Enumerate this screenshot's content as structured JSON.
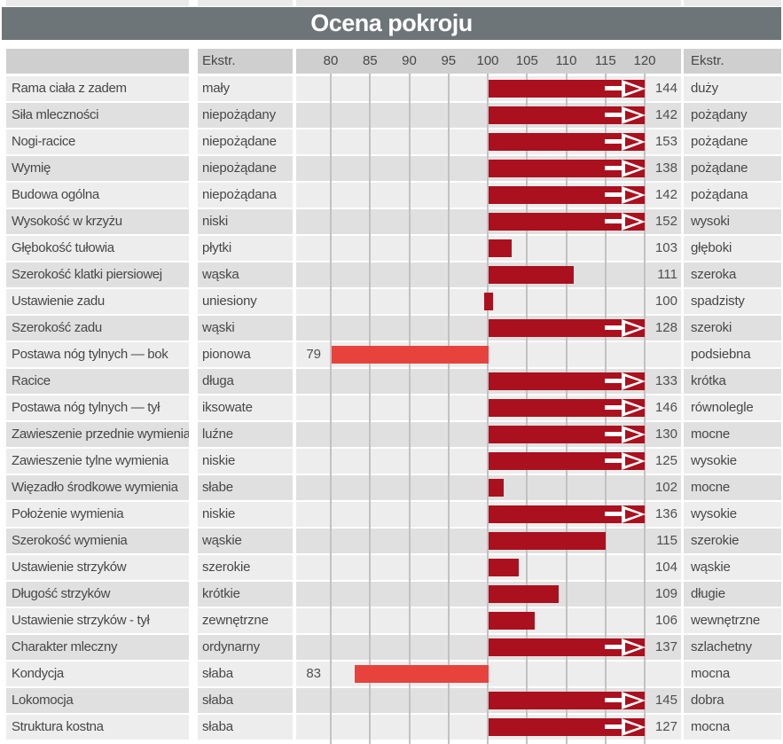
{
  "title": "Ocena pokroju",
  "header": {
    "ekstr_left": "Ekstr.",
    "ekstr_right": "Ekstr."
  },
  "chart_data": {
    "type": "bar",
    "orientation": "horizontal",
    "title": "Ocena pokroju",
    "axis": {
      "min": 80,
      "max": 120,
      "step": 5,
      "baseline": 100,
      "ticks": [
        80,
        85,
        90,
        95,
        100,
        105,
        110,
        115,
        120
      ],
      "overflow_marker": "white arrow when value exceeds 120",
      "grid": true
    },
    "colors": {
      "bar_above_100": "#ab101e",
      "bar_below_100": "#e8423d",
      "title_bar": "#6e7578",
      "header_bg": "#cfcfcf",
      "row_light": "#ededed",
      "row_dark": "#e0e0e0",
      "gridline": "#c2c2c2",
      "title_text": "#ffffff"
    },
    "rows": [
      {
        "trait": "Rama ciała z zadem",
        "extreme_low": "mały",
        "value": 144,
        "extreme_high": "duży"
      },
      {
        "trait": "Siła mleczności",
        "extreme_low": "niepożądany",
        "value": 142,
        "extreme_high": "pożądany"
      },
      {
        "trait": "Nogi-racice",
        "extreme_low": "niepożądane",
        "value": 153,
        "extreme_high": "pożądane"
      },
      {
        "trait": "Wymię",
        "extreme_low": "niepożądane",
        "value": 138,
        "extreme_high": "pożądane"
      },
      {
        "trait": "Budowa ogólna",
        "extreme_low": "niepożądana",
        "value": 142,
        "extreme_high": "pożądana"
      },
      {
        "trait": "Wysokość w krzyżu",
        "extreme_low": "niski",
        "value": 152,
        "extreme_high": "wysoki"
      },
      {
        "trait": "Głębokość tułowia",
        "extreme_low": "płytki",
        "value": 103,
        "extreme_high": "głęboki"
      },
      {
        "trait": "Szerokość klatki piersiowej",
        "extreme_low": "wąska",
        "value": 111,
        "extreme_high": "szeroka"
      },
      {
        "trait": "Ustawienie zadu",
        "extreme_low": "uniesiony",
        "value": 100,
        "extreme_high": "spadzisty"
      },
      {
        "trait": "Szerokość zadu",
        "extreme_low": "wąski",
        "value": 128,
        "extreme_high": "szeroki"
      },
      {
        "trait": "Postawa nóg tylnych —  bok",
        "extreme_low": "pionowa",
        "value": 79,
        "extreme_high": "podsiebna"
      },
      {
        "trait": "Racice",
        "extreme_low": "długa",
        "value": 133,
        "extreme_high": "krótka"
      },
      {
        "trait": "Postawa nóg tylnych —  tył",
        "extreme_low": "iksowate",
        "value": 146,
        "extreme_high": "równolegle"
      },
      {
        "trait": "Zawieszenie przednie wymienia",
        "extreme_low": "luźne",
        "value": 130,
        "extreme_high": "mocne"
      },
      {
        "trait": "Zawieszenie tylne wymienia",
        "extreme_low": "niskie",
        "value": 125,
        "extreme_high": "wysokie"
      },
      {
        "trait": "Więzadło środkowe wymienia",
        "extreme_low": "słabe",
        "value": 102,
        "extreme_high": "mocne"
      },
      {
        "trait": "Położenie wymienia",
        "extreme_low": "niskie",
        "value": 136,
        "extreme_high": "wysokie"
      },
      {
        "trait": "Szerokość wymienia",
        "extreme_low": "wąskie",
        "value": 115,
        "extreme_high": "szerokie"
      },
      {
        "trait": "Ustawienie strzyków",
        "extreme_low": "szerokie",
        "value": 104,
        "extreme_high": "wąskie"
      },
      {
        "trait": "Długość strzyków",
        "extreme_low": "krótkie",
        "value": 109,
        "extreme_high": "długie"
      },
      {
        "trait": "Ustawienie strzyków - tył",
        "extreme_low": "zewnętrzne",
        "value": 106,
        "extreme_high": "wewnętrzne"
      },
      {
        "trait": "Charakter mleczny",
        "extreme_low": "ordynarny",
        "value": 137,
        "extreme_high": "szlachetny"
      },
      {
        "trait": "Kondycja",
        "extreme_low": "słaba",
        "value": 83,
        "extreme_high": "mocna"
      },
      {
        "trait": "Lokomocja",
        "extreme_low": "słaba",
        "value": 145,
        "extreme_high": "dobra"
      },
      {
        "trait": "Struktura kostna",
        "extreme_low": "słaba",
        "value": 127,
        "extreme_high": "mocna"
      }
    ]
  }
}
